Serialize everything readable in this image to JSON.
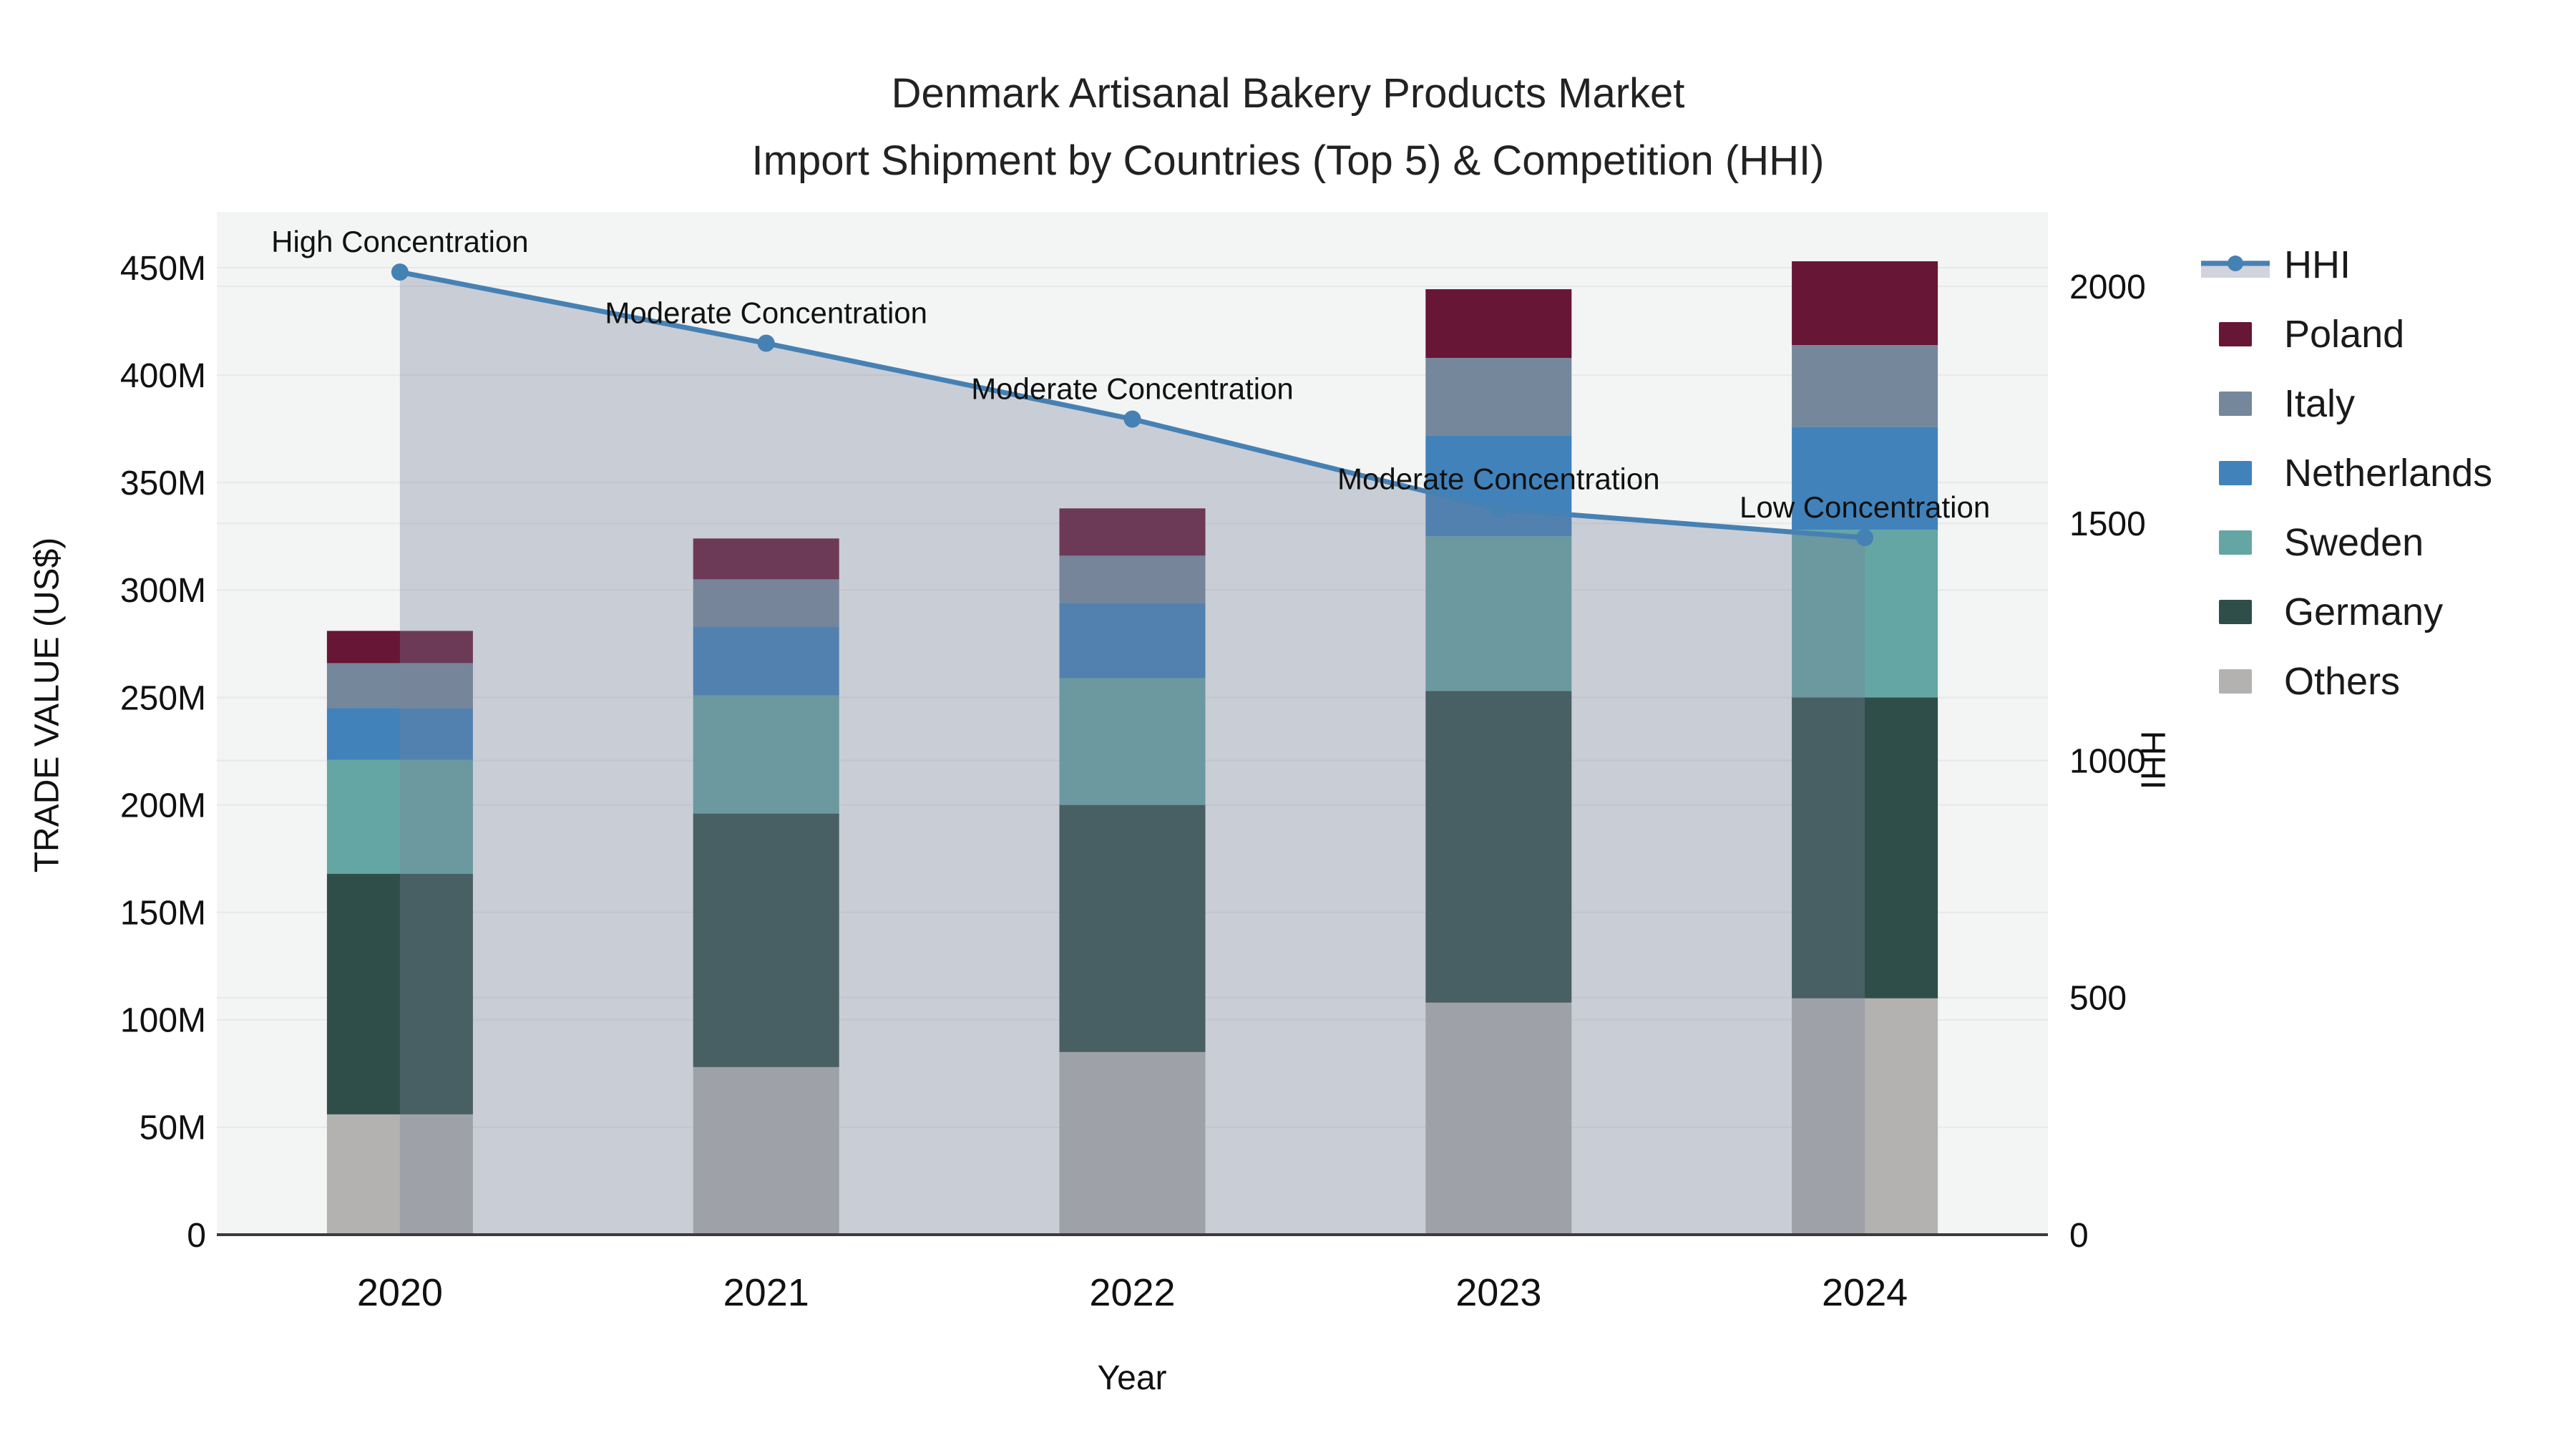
{
  "title": {
    "line1": "Denmark Artisanal Bakery Products Market",
    "line2": "Import Shipment by Countries (Top 5) & Competition (HHI)"
  },
  "axes": {
    "x": {
      "title": "Year",
      "ticks": [
        "2020",
        "2021",
        "2022",
        "2023",
        "2024"
      ]
    },
    "y_left": {
      "title": "TRADE VALUE (US$)",
      "ticks": [
        "0",
        "50M",
        "100M",
        "150M",
        "200M",
        "250M",
        "300M",
        "350M",
        "400M",
        "450M"
      ],
      "tick_values_m": [
        0,
        50,
        100,
        150,
        200,
        250,
        300,
        350,
        400,
        450
      ]
    },
    "y_right": {
      "title": "HHI",
      "ticks": [
        "0",
        "500",
        "1000",
        "1500",
        "2000"
      ],
      "tick_values": [
        0,
        500,
        1000,
        1500,
        2000
      ]
    }
  },
  "legend": {
    "line_item_label": "HHI"
  },
  "colors": {
    "paper_bg": "#FFFFFF",
    "plot_bg": "#F3F4F4",
    "grid": "#E6E8EA",
    "axis_line": "#3B3B3B",
    "annotation_text": "#000000",
    "hhi_line": "#4681B4",
    "hhi_fill": "rgba(120,130,153,0.34)",
    "hhi_legend_fill": "#D1D4DC"
  },
  "chart_data": {
    "type": "bar",
    "subtype": "stacked-bars-with-hhi-line-and-area",
    "title": "Denmark Artisanal Bakery Products Market — Import Shipment by Countries (Top 5) & Competition (HHI)",
    "categories": [
      "2020",
      "2021",
      "2022",
      "2023",
      "2024"
    ],
    "unit": "million US$",
    "series": [
      {
        "name": "Others",
        "color": "#B3B2B1",
        "values": [
          56,
          78,
          85,
          108,
          110
        ]
      },
      {
        "name": "Germany",
        "color": "#2F4E4A",
        "values": [
          112,
          118,
          115,
          145,
          140
        ]
      },
      {
        "name": "Sweden",
        "color": "#64A6A3",
        "values": [
          53,
          55,
          59,
          72,
          78
        ]
      },
      {
        "name": "Netherlands",
        "color": "#4182BB",
        "values": [
          24,
          32,
          35,
          47,
          48
        ]
      },
      {
        "name": "Italy",
        "color": "#75879B",
        "values": [
          21,
          22,
          22,
          36,
          38
        ]
      },
      {
        "name": "Poland",
        "color": "#671635",
        "values": [
          15,
          19,
          22,
          32,
          39
        ]
      }
    ],
    "stack_totals_musd": [
      281,
      324,
      338,
      440,
      453
    ],
    "line_series": {
      "name": "HHI",
      "color": "#4681B4",
      "fill_color": "rgba(120,130,153,0.34)",
      "values": [
        2030,
        1880,
        1720,
        1530,
        1470
      ]
    },
    "annotations": [
      {
        "year": "2020",
        "label": "High Concentration"
      },
      {
        "year": "2021",
        "label": "Moderate Concentration"
      },
      {
        "year": "2022",
        "label": "Moderate Concentration"
      },
      {
        "year": "2023",
        "label": "Moderate Concentration"
      },
      {
        "year": "2024",
        "label": "Low Concentration"
      }
    ],
    "xlabel": "Year",
    "ylabel_left": "TRADE VALUE (US$)",
    "ylabel_right": "HHI",
    "ylim_left_musd": [
      0,
      476
    ],
    "ylim_right": [
      0,
      2157
    ],
    "grid": true,
    "legend_position": "right"
  }
}
